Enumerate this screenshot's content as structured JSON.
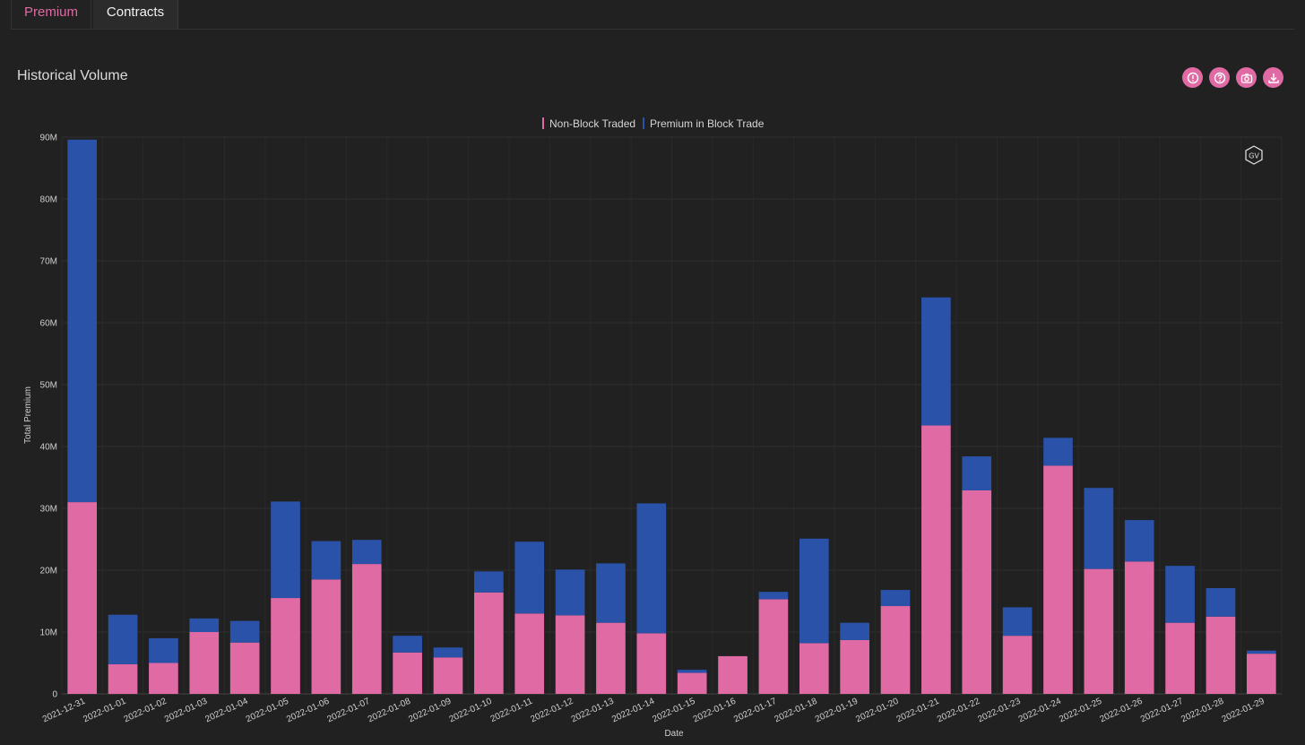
{
  "tabs": [
    {
      "label": "Premium",
      "active": true
    },
    {
      "label": "Contracts",
      "active": false
    }
  ],
  "panel": {
    "title": "Historical Volume",
    "toolbar": [
      "info-icon",
      "help-icon",
      "camera-icon",
      "download-icon"
    ]
  },
  "colors": {
    "non_block": "#e06aa4",
    "block": "#2a52a8",
    "accent": "#e06aa4",
    "background": "#212121"
  },
  "watermark": "GV",
  "chart_data": {
    "type": "bar",
    "stacked": true,
    "title": "",
    "xlabel": "Date",
    "ylabel": "Total Premium",
    "ylim": [
      0,
      90000000
    ],
    "yticks": [
      {
        "value": 0,
        "label": "0"
      },
      {
        "value": 10000000,
        "label": "10M"
      },
      {
        "value": 20000000,
        "label": "20M"
      },
      {
        "value": 30000000,
        "label": "30M"
      },
      {
        "value": 40000000,
        "label": "40M"
      },
      {
        "value": 50000000,
        "label": "50M"
      },
      {
        "value": 60000000,
        "label": "60M"
      },
      {
        "value": 70000000,
        "label": "70M"
      },
      {
        "value": 80000000,
        "label": "80M"
      },
      {
        "value": 90000000,
        "label": "90M"
      }
    ],
    "grid": true,
    "legend_position": "top-center",
    "categories": [
      "2021-12-31",
      "2022-01-01",
      "2022-01-02",
      "2022-01-03",
      "2022-01-04",
      "2022-01-05",
      "2022-01-06",
      "2022-01-07",
      "2022-01-08",
      "2022-01-09",
      "2022-01-10",
      "2022-01-11",
      "2022-01-12",
      "2022-01-13",
      "2022-01-14",
      "2022-01-15",
      "2022-01-16",
      "2022-01-17",
      "2022-01-18",
      "2022-01-19",
      "2022-01-20",
      "2022-01-21",
      "2022-01-22",
      "2022-01-23",
      "2022-01-24",
      "2022-01-25",
      "2022-01-26",
      "2022-01-27",
      "2022-01-28",
      "2022-01-29"
    ],
    "series": [
      {
        "name": "Non-Block Traded",
        "color": "#e06aa4",
        "values": [
          31000000,
          4800000,
          5000000,
          10000000,
          8300000,
          15500000,
          18500000,
          21000000,
          6700000,
          5900000,
          16400000,
          13000000,
          12700000,
          11500000,
          9800000,
          3400000,
          6100000,
          15300000,
          8200000,
          8700000,
          14200000,
          43400000,
          32900000,
          9400000,
          36900000,
          20200000,
          21400000,
          11500000,
          12500000,
          6500000
        ]
      },
      {
        "name": "Premium in Block Trade",
        "color": "#2a52a8",
        "values": [
          58600000,
          8000000,
          4000000,
          2200000,
          3500000,
          15600000,
          6200000,
          3900000,
          2700000,
          1600000,
          3400000,
          11600000,
          7400000,
          9600000,
          21000000,
          500000,
          0,
          1200000,
          16900000,
          2800000,
          2600000,
          20700000,
          5500000,
          4600000,
          4500000,
          13100000,
          6700000,
          9200000,
          4600000,
          500000
        ]
      }
    ]
  }
}
